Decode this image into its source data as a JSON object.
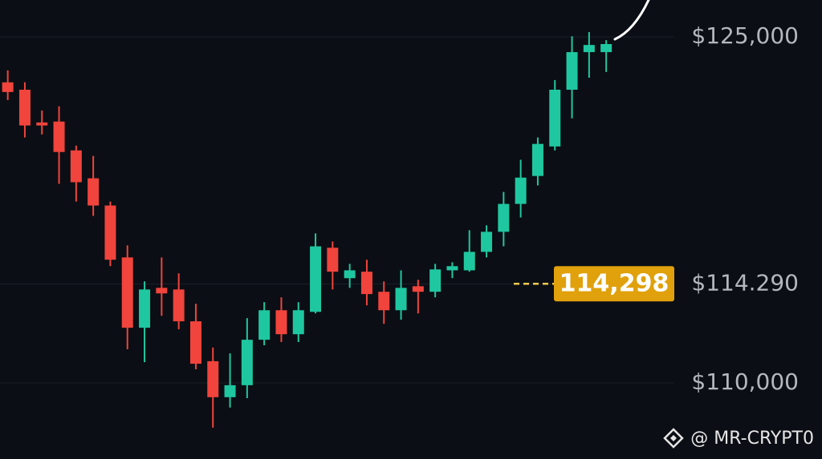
{
  "chart_data": {
    "type": "candlestick",
    "open": [
      123030,
      122710,
      121290,
      121330,
      120080,
      118870,
      117690,
      115440,
      112390,
      114120,
      114050,
      112670,
      110940,
      109380,
      109900,
      111870,
      113150,
      112110,
      113080,
      115860,
      114540,
      114820,
      113950,
      113150,
      114190,
      113950,
      114880,
      114880,
      115680,
      116550,
      117760,
      118970,
      120250,
      122710,
      124340,
      124340
    ],
    "high": [
      123550,
      123030,
      121810,
      121990,
      120290,
      119840,
      117860,
      115960,
      114400,
      115440,
      114750,
      113430,
      111530,
      111280,
      112810,
      113500,
      113710,
      113500,
      116480,
      116130,
      115160,
      115340,
      114400,
      114880,
      114470,
      115160,
      115230,
      116620,
      116830,
      118280,
      119670,
      120640,
      123130,
      125030,
      125210,
      124860
    ],
    "low": [
      122260,
      120640,
      120770,
      118630,
      117860,
      117240,
      115060,
      111460,
      110900,
      112910,
      112320,
      110590,
      108060,
      108930,
      109340,
      111630,
      111770,
      111770,
      113010,
      114050,
      114120,
      113360,
      112560,
      112740,
      113010,
      113710,
      114540,
      114820,
      115440,
      115920,
      117170,
      118560,
      120080,
      121470,
      123230,
      123480
    ],
    "close": [
      122610,
      121160,
      121160,
      120010,
      118700,
      117690,
      115340,
      112390,
      114050,
      113880,
      112670,
      110830,
      109380,
      109900,
      111870,
      113150,
      112110,
      113150,
      115920,
      114820,
      114880,
      113850,
      113150,
      114120,
      113950,
      114920,
      115060,
      115680,
      116550,
      117760,
      118900,
      120360,
      122710,
      124340,
      124650,
      124690
    ],
    "up_color": "#1fc7a0",
    "down_color": "#f0443c",
    "ylim": [
      106700,
      126600
    ],
    "yticks": [
      {
        "value": 125000,
        "label": "$125,000"
      },
      {
        "value": 114290,
        "label": "$114.290"
      },
      {
        "value": 110000,
        "label": "$110,000"
      }
    ],
    "grid": true,
    "current_price": {
      "value": 114298,
      "label": "114,298",
      "color": "#e0a10d"
    }
  },
  "watermark": "@ MR-CRYPT0"
}
